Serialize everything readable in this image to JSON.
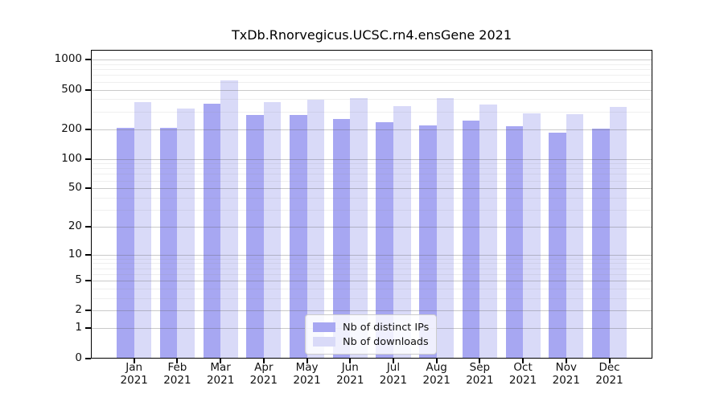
{
  "chart_data": {
    "type": "bar",
    "title": "TxDb.Rnorvegicus.UCSC.rn4.ensGene 2021",
    "categories": [
      "Jan 2021",
      "Feb 2021",
      "Mar 2021",
      "Apr 2021",
      "May 2021",
      "Jun 2021",
      "Jul 2021",
      "Aug 2021",
      "Sep 2021",
      "Oct 2021",
      "Nov 2021",
      "Dec 2021"
    ],
    "series": [
      {
        "name": "Nb of distinct IPs",
        "color": "#a7a7f2",
        "values": [
          205,
          205,
          360,
          280,
          280,
          255,
          237,
          220,
          245,
          214,
          183,
          204
        ]
      },
      {
        "name": "Nb of downloads",
        "color": "#d9daf8",
        "values": [
          378,
          320,
          620,
          375,
          400,
          410,
          340,
          415,
          356,
          288,
          281,
          332
        ]
      }
    ],
    "xlabel": "",
    "ylabel": "",
    "y_scale": "log10(value+1)",
    "y_tick_values": [
      0,
      1,
      2,
      5,
      10,
      20,
      50,
      100,
      200,
      500,
      1000
    ],
    "y_tick_labels": [
      "0",
      "1",
      "2",
      "5",
      "10",
      "20",
      "50",
      "100",
      "200",
      "500",
      "1000"
    ],
    "ylim": [
      0,
      1080
    ],
    "grid": "log minor + major horizontal gridlines drawn over bars",
    "legend_position": "inside bottom-center"
  },
  "legend": {
    "items": [
      {
        "label": "Nb of distinct IPs",
        "color": "#a7a7f2"
      },
      {
        "label": "Nb of downloads",
        "color": "#d9daf8"
      }
    ]
  }
}
